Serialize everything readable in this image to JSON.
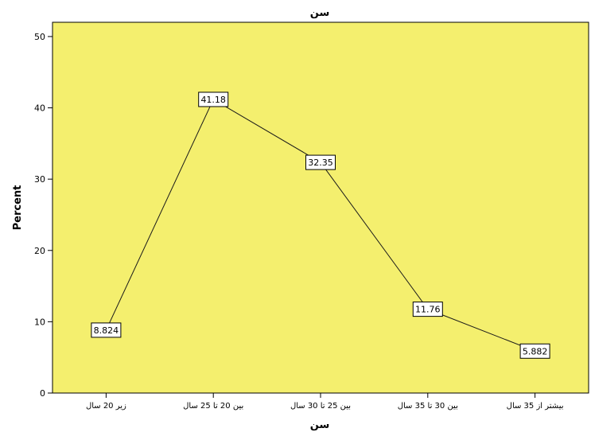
{
  "chart_data": {
    "type": "line",
    "title": "سن",
    "xlabel": "سن",
    "ylabel": "Percent",
    "categories": [
      "زیر 20 سال",
      "بین 20 تا 25 سال",
      "بین 25 تا 30 سال",
      "بین 30 تا 35 سال",
      "بیشتر از 35 سال"
    ],
    "values": [
      8.824,
      41.18,
      32.35,
      11.76,
      5.882
    ],
    "data_labels": [
      "8.824",
      "41.18",
      "32.35",
      "11.76",
      "5.882"
    ],
    "ylim": [
      0,
      52
    ],
    "yticks": [
      0,
      10,
      20,
      30,
      40,
      50
    ],
    "grid": false,
    "legend": "none",
    "colors": {
      "plot_background": "#f4ef6e",
      "line": "#1a1a1a",
      "label_box_fill": "#ffffff",
      "label_box_stroke": "#000000"
    }
  }
}
